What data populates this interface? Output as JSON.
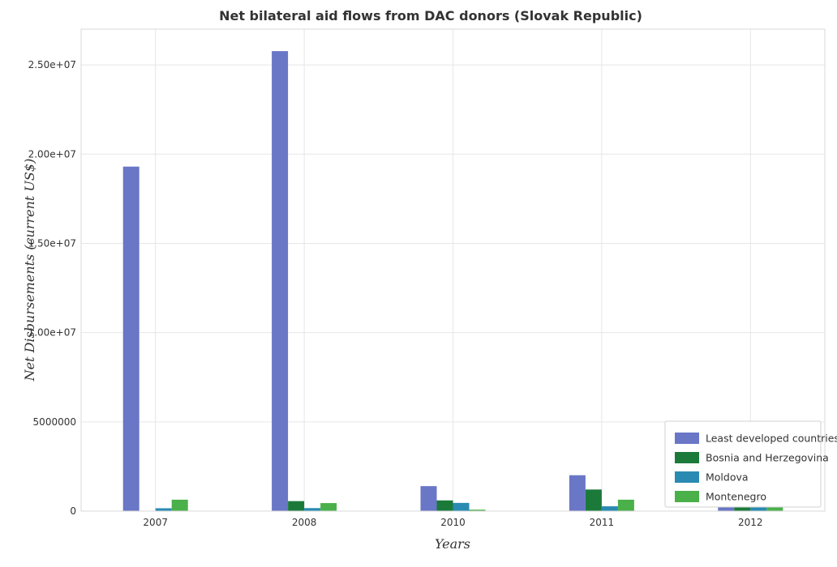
{
  "chart_data": {
    "type": "bar",
    "title": "Net bilateral aid flows from DAC donors (Slovak Republic)",
    "xlabel": "Years",
    "ylabel": "Net Disbursements (current US$)",
    "categories": [
      "2007",
      "2008",
      "2010",
      "2011",
      "2012"
    ],
    "ylim": [
      0,
      27000000
    ],
    "yticks": [
      0,
      5000000,
      10000000,
      15000000,
      20000000,
      25000000
    ],
    "ytick_labels": [
      "0",
      "5000000",
      "1.00e+07",
      "1.50e+07",
      "2.00e+07",
      "2.50e+07"
    ],
    "grid": true,
    "legend_position": "bottom-right",
    "series": [
      {
        "name": "Least developed countries",
        "color": "#6a76c6",
        "values": [
          19300000,
          25770000,
          1400000,
          2010000,
          1700000
        ]
      },
      {
        "name": "Bosnia and Herzegovina",
        "color": "#1b7a3a",
        "values": [
          0,
          560000,
          600000,
          1210000,
          330000
        ]
      },
      {
        "name": "Moldova",
        "color": "#2a8ab2",
        "values": [
          160000,
          170000,
          460000,
          270000,
          400000
        ]
      },
      {
        "name": "Montenegro",
        "color": "#4ab04a",
        "values": [
          640000,
          450000,
          80000,
          640000,
          400000
        ]
      }
    ]
  }
}
